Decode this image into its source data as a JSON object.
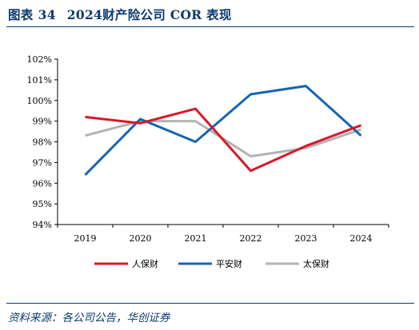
{
  "header": {
    "figure_label": "图表",
    "figure_number": "34",
    "title": "2024财产险公司 COR 表现"
  },
  "footer": {
    "source": "资料来源：各公司公告，华创证券"
  },
  "chart_data": {
    "type": "line",
    "title": "2024财产险公司 COR 表现",
    "xlabel": "",
    "ylabel": "",
    "x": [
      "2019",
      "2020",
      "2021",
      "2022",
      "2023",
      "2024"
    ],
    "ylim": [
      94,
      102
    ],
    "yticks": [
      "94%",
      "95%",
      "96%",
      "97%",
      "98%",
      "99%",
      "100%",
      "101%",
      "102%"
    ],
    "grid": false,
    "legend_position": "bottom",
    "series": [
      {
        "name": "人保财",
        "color": "#d7182a",
        "values": [
          99.2,
          98.9,
          99.6,
          96.6,
          97.8,
          98.8
        ]
      },
      {
        "name": "平安财",
        "color": "#1565b5",
        "values": [
          96.4,
          99.1,
          98.0,
          100.3,
          100.7,
          98.3
        ]
      },
      {
        "name": "太保财",
        "color": "#b3b3b3",
        "values": [
          98.3,
          99.0,
          99.0,
          97.3,
          97.7,
          98.6
        ]
      }
    ]
  }
}
